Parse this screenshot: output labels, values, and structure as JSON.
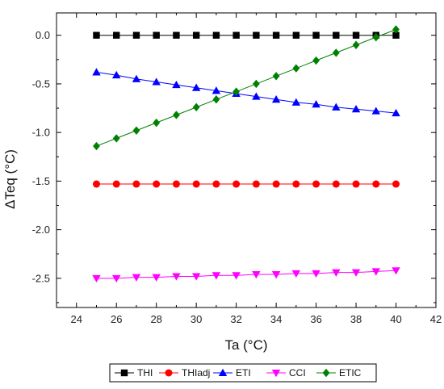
{
  "chart_data": {
    "type": "line",
    "xlabel": "Ta (°C)",
    "ylabel": "ΔTeq (°C)",
    "xlim": [
      23,
      42
    ],
    "ylim": [
      -2.8,
      0.23
    ],
    "x_ticks": [
      24,
      26,
      28,
      30,
      32,
      34,
      36,
      38,
      40,
      42
    ],
    "y_ticks": [
      0.0,
      -0.5,
      -1.0,
      -1.5,
      -2.0,
      -2.5
    ],
    "y_tick_labels": [
      "0.0",
      "-0.5",
      "-1.0",
      "-1.5",
      "-2.0",
      "-2.5"
    ],
    "grid": false,
    "legend_position": "bottom",
    "x": [
      25,
      26,
      27,
      28,
      29,
      30,
      31,
      32,
      33,
      34,
      35,
      36,
      37,
      38,
      39,
      40
    ],
    "series": [
      {
        "name": "THI",
        "color": "#000000",
        "marker": "square",
        "values": [
          0,
          0,
          0,
          0,
          0,
          0,
          0,
          0,
          0,
          0,
          0,
          0,
          0,
          0,
          0,
          0
        ]
      },
      {
        "name": "THIadj",
        "color": "#ff0000",
        "marker": "circle",
        "values": [
          -1.53,
          -1.53,
          -1.53,
          -1.53,
          -1.53,
          -1.53,
          -1.53,
          -1.53,
          -1.53,
          -1.53,
          -1.53,
          -1.53,
          -1.53,
          -1.53,
          -1.53,
          -1.53
        ]
      },
      {
        "name": "ETI",
        "color": "#0000ff",
        "marker": "triangle-up",
        "values": [
          -0.38,
          -0.41,
          -0.45,
          -0.48,
          -0.51,
          -0.54,
          -0.57,
          -0.6,
          -0.63,
          -0.66,
          -0.69,
          -0.71,
          -0.74,
          -0.76,
          -0.78,
          -0.8
        ]
      },
      {
        "name": "CCI",
        "color": "#ff00ff",
        "marker": "triangle-down",
        "values": [
          -2.5,
          -2.5,
          -2.49,
          -2.49,
          -2.48,
          -2.48,
          -2.47,
          -2.47,
          -2.46,
          -2.46,
          -2.45,
          -2.45,
          -2.44,
          -2.44,
          -2.43,
          -2.42
        ]
      },
      {
        "name": "ETIC",
        "color": "#008000",
        "marker": "diamond",
        "values": [
          -1.14,
          -1.06,
          -0.98,
          -0.9,
          -0.82,
          -0.74,
          -0.66,
          -0.58,
          -0.5,
          -0.42,
          -0.34,
          -0.26,
          -0.18,
          -0.1,
          -0.02,
          0.06
        ]
      }
    ]
  }
}
